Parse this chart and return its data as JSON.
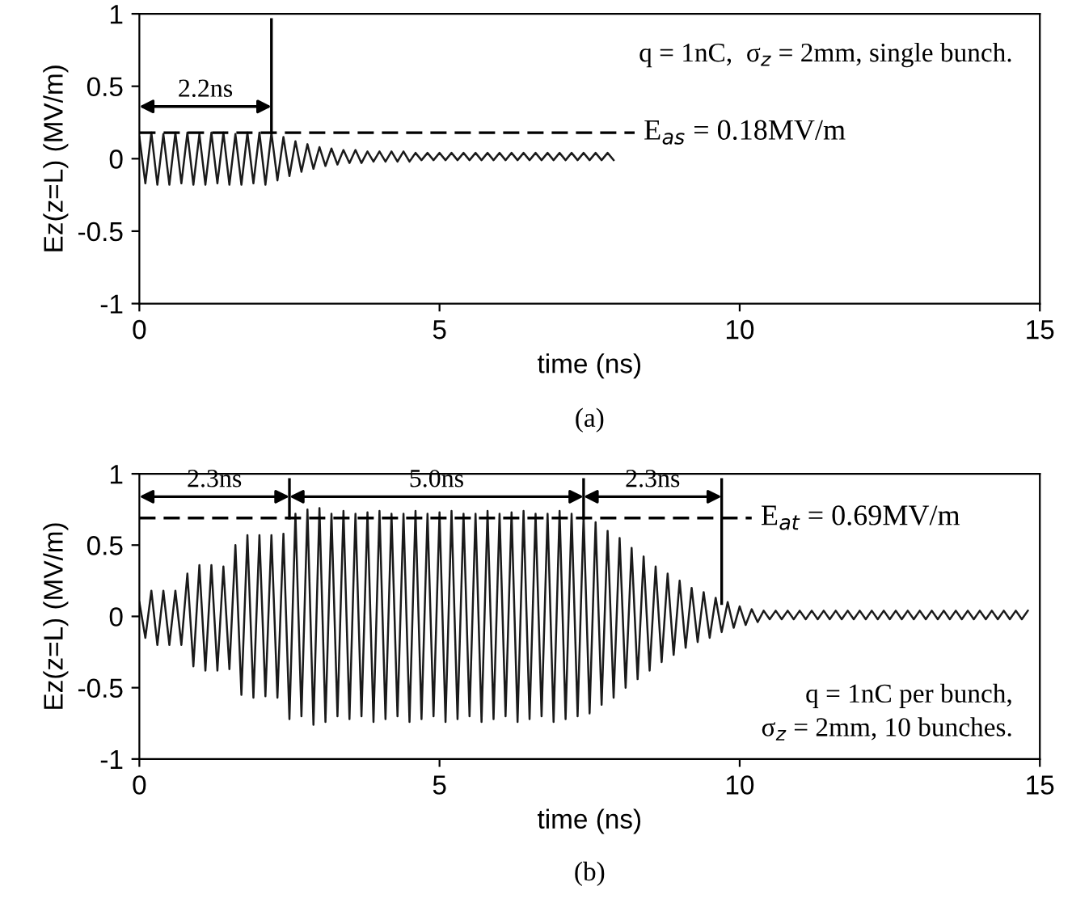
{
  "chart_data": [
    {
      "type": "line",
      "xlabel": "time (ns)",
      "ylabel": "Ez(z=L) (MV/m)",
      "xlim": [
        0,
        15
      ],
      "ylim": [
        -1,
        1
      ],
      "xticks": [
        0,
        5,
        10,
        15
      ],
      "yticks": [
        -1,
        -0.5,
        0,
        0.5,
        1
      ],
      "grid": false,
      "legend": false,
      "series": [
        {
          "color": "#1a1a1a",
          "x": [
            0.0,
            0.1,
            0.2,
            0.3,
            0.4,
            0.5,
            0.6,
            0.7,
            0.8,
            0.9,
            1.0,
            1.1,
            1.2,
            1.3,
            1.4,
            1.5,
            1.6,
            1.7,
            1.8,
            1.9,
            2.0,
            2.1,
            2.2,
            2.3,
            2.4,
            2.5,
            2.6,
            2.7,
            2.8,
            2.9,
            3.0,
            3.1,
            3.2,
            3.3,
            3.4,
            3.5,
            3.6,
            3.7,
            3.8,
            3.9,
            4.0,
            4.1,
            4.2,
            4.3,
            4.4,
            4.5,
            4.6,
            4.7,
            4.8,
            4.9,
            5.0,
            5.1,
            5.2,
            5.3,
            5.4,
            5.5,
            5.6,
            5.7,
            5.8,
            5.9,
            6.0,
            6.1,
            6.2,
            6.3,
            6.4,
            6.5,
            6.6,
            6.7,
            6.8,
            6.9,
            7.0,
            7.1,
            7.2,
            7.3,
            7.4,
            7.5,
            7.6,
            7.7,
            7.8,
            7.9
          ],
          "values": [
            0.15,
            -0.17,
            0.18,
            -0.18,
            0.17,
            -0.18,
            0.18,
            -0.17,
            0.18,
            -0.18,
            0.17,
            -0.18,
            0.18,
            -0.17,
            0.18,
            -0.18,
            0.17,
            -0.18,
            0.18,
            -0.17,
            0.18,
            -0.18,
            0.18,
            -0.15,
            0.15,
            -0.12,
            0.12,
            -0.09,
            0.1,
            -0.07,
            0.08,
            -0.05,
            0.07,
            -0.04,
            0.06,
            -0.03,
            0.06,
            -0.03,
            0.05,
            -0.02,
            0.05,
            -0.02,
            0.05,
            -0.02,
            0.05,
            -0.02,
            0.04,
            -0.01,
            0.04,
            -0.01,
            0.04,
            -0.01,
            0.04,
            -0.01,
            0.04,
            -0.01,
            0.04,
            -0.01,
            0.04,
            -0.01,
            0.04,
            -0.01,
            0.04,
            -0.01,
            0.04,
            -0.01,
            0.04,
            -0.01,
            0.04,
            -0.01,
            0.04,
            -0.01,
            0.04,
            -0.01,
            0.04,
            -0.01,
            0.04,
            -0.01,
            0.04,
            -0.01
          ]
        }
      ],
      "ref_lines": [
        {
          "axis": "y",
          "value": 0.18,
          "label": "E$_{as}$ = 0.18MV/m",
          "line_style": "dashed"
        },
        {
          "axis": "x",
          "value": 2.2,
          "line_style": "solid"
        }
      ],
      "annotations": [
        "2.2ns",
        "q = 1nC,  σ$_{z}$ = 2mm, single bunch.",
        "(a)"
      ]
    },
    {
      "type": "line",
      "xlabel": "time (ns)",
      "ylabel": "Ez(z=L) (MV/m)",
      "xlim": [
        0,
        15
      ],
      "ylim": [
        -1,
        1
      ],
      "xticks": [
        0,
        5,
        10,
        15
      ],
      "yticks": [
        -1,
        -0.5,
        0,
        0.5,
        1
      ],
      "grid": false,
      "legend": false,
      "series": [
        {
          "color": "#1a1a1a",
          "x": [
            0.0,
            0.1,
            0.2,
            0.3,
            0.4,
            0.5,
            0.6,
            0.7,
            0.8,
            0.9,
            1.0,
            1.1,
            1.2,
            1.3,
            1.4,
            1.5,
            1.6,
            1.7,
            1.8,
            1.9,
            2.0,
            2.1,
            2.2,
            2.3,
            2.4,
            2.5,
            2.6,
            2.7,
            2.8,
            2.9,
            3.0,
            3.1,
            3.2,
            3.3,
            3.4,
            3.5,
            3.6,
            3.7,
            3.8,
            3.9,
            4.0,
            4.1,
            4.2,
            4.3,
            4.4,
            4.5,
            4.6,
            4.7,
            4.8,
            4.9,
            5.0,
            5.1,
            5.2,
            5.3,
            5.4,
            5.5,
            5.6,
            5.7,
            5.8,
            5.9,
            6.0,
            6.1,
            6.2,
            6.3,
            6.4,
            6.5,
            6.6,
            6.7,
            6.8,
            6.9,
            7.0,
            7.1,
            7.2,
            7.3,
            7.4,
            7.5,
            7.6,
            7.7,
            7.8,
            7.9,
            8.0,
            8.1,
            8.2,
            8.3,
            8.4,
            8.5,
            8.6,
            8.7,
            8.8,
            8.9,
            9.0,
            9.1,
            9.2,
            9.3,
            9.4,
            9.5,
            9.6,
            9.7,
            9.8,
            9.9,
            10.0,
            10.1,
            10.2,
            10.3,
            10.4,
            10.5,
            10.6,
            10.7,
            10.8,
            10.9,
            11.0,
            11.1,
            11.2,
            11.3,
            11.4,
            11.5,
            11.6,
            11.7,
            11.8,
            11.9,
            12.0,
            12.1,
            12.2,
            12.3,
            12.4,
            12.5,
            12.6,
            12.7,
            12.8,
            12.9,
            13.0,
            13.1,
            13.2,
            13.3,
            13.4,
            13.5,
            13.6,
            13.7,
            13.8,
            13.9,
            14.0,
            14.1,
            14.2,
            14.3,
            14.4,
            14.5,
            14.6,
            14.7,
            14.8
          ],
          "values": [
            0.1,
            -0.15,
            0.18,
            -0.2,
            0.18,
            -0.2,
            0.18,
            -0.2,
            0.3,
            -0.35,
            0.36,
            -0.38,
            0.36,
            -0.38,
            0.35,
            -0.37,
            0.5,
            -0.55,
            0.57,
            -0.57,
            0.57,
            -0.56,
            0.57,
            -0.57,
            0.58,
            -0.72,
            0.72,
            -0.7,
            0.75,
            -0.76,
            0.76,
            -0.74,
            0.72,
            -0.7,
            0.74,
            -0.72,
            0.72,
            -0.7,
            0.73,
            -0.74,
            0.74,
            -0.72,
            0.72,
            -0.7,
            0.72,
            -0.74,
            0.74,
            -0.72,
            0.72,
            -0.7,
            0.73,
            -0.74,
            0.74,
            -0.72,
            0.72,
            -0.7,
            0.72,
            -0.74,
            0.74,
            -0.72,
            0.72,
            -0.7,
            0.73,
            -0.74,
            0.74,
            -0.72,
            0.72,
            -0.7,
            0.72,
            -0.74,
            0.74,
            -0.72,
            0.72,
            -0.7,
            0.7,
            -0.68,
            0.66,
            -0.62,
            0.6,
            -0.57,
            0.55,
            -0.5,
            0.48,
            -0.44,
            0.42,
            -0.38,
            0.35,
            -0.32,
            0.3,
            -0.27,
            0.25,
            -0.22,
            0.2,
            -0.18,
            0.17,
            -0.15,
            0.13,
            -0.11,
            0.1,
            -0.08,
            0.07,
            -0.06,
            0.05,
            -0.04,
            0.04,
            -0.02,
            0.04,
            -0.02,
            0.04,
            -0.02,
            0.04,
            -0.02,
            0.04,
            -0.02,
            0.04,
            -0.02,
            0.04,
            -0.02,
            0.04,
            -0.02,
            0.04,
            -0.02,
            0.04,
            -0.02,
            0.04,
            -0.02,
            0.04,
            -0.02,
            0.04,
            -0.02,
            0.04,
            -0.02,
            0.04,
            -0.02,
            0.04,
            -0.02,
            0.04,
            -0.02,
            0.04,
            -0.02,
            0.04,
            -0.02,
            0.04,
            -0.02,
            0.04,
            -0.02,
            0.04,
            -0.02,
            0.04
          ]
        }
      ],
      "ref_lines": [
        {
          "axis": "y",
          "value": 0.69,
          "label": "E$_{at}$ = 0.69MV/m",
          "line_style": "dashed"
        },
        {
          "axis": "x",
          "value": 2.5,
          "line_style": "solid"
        },
        {
          "axis": "x",
          "value": 7.4,
          "line_style": "solid"
        },
        {
          "axis": "x",
          "value": 9.7,
          "line_style": "solid"
        }
      ],
      "annotations": [
        "2.3ns",
        "5.0ns",
        "2.3ns",
        "q = 1nC per bunch,\n  σ$_{z}$ = 2mm, 10 bunches.",
        "(b)"
      ]
    }
  ]
}
